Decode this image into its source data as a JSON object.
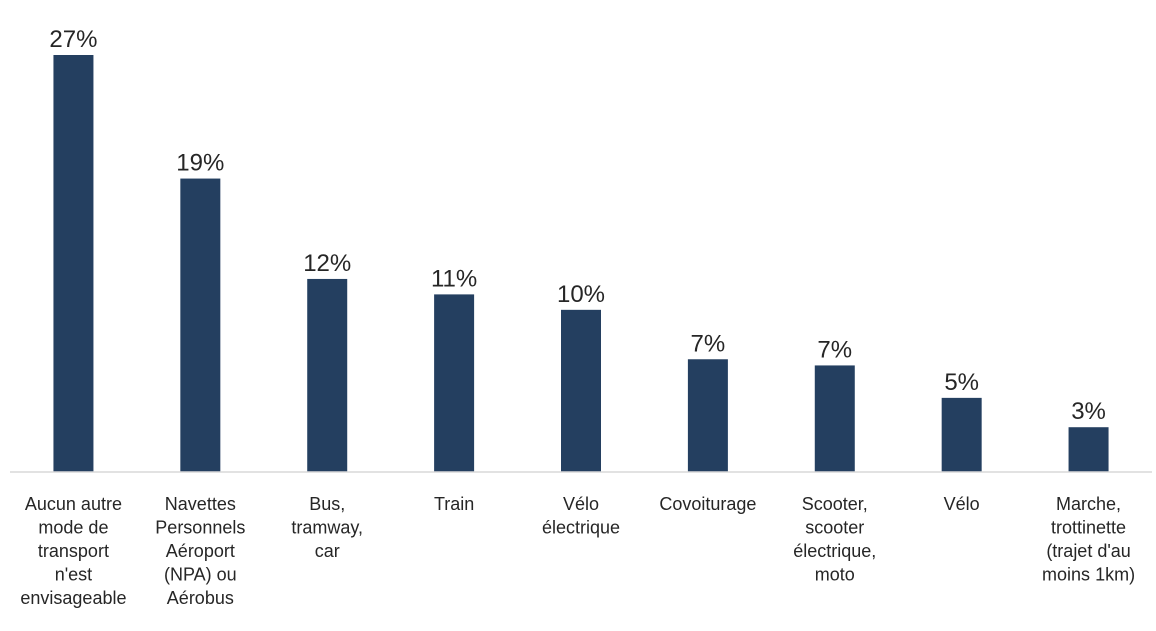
{
  "chart_data": {
    "type": "bar",
    "title": "",
    "xlabel": "",
    "ylabel": "",
    "ylim": [
      0,
      0.27
    ],
    "grid": false,
    "legend": "none",
    "bar_color": "#243F60",
    "axis_color": "#D9D9D9",
    "categories": [
      [
        "Aucun autre",
        "mode de",
        "transport",
        "n'est",
        "envisageable"
      ],
      [
        "Navettes",
        "Personnels",
        "Aéroport",
        "(NPA) ou",
        "Aérobus"
      ],
      [
        "Bus,",
        "tramway,",
        "car"
      ],
      [
        "Train"
      ],
      [
        "Vélo",
        "électrique"
      ],
      [
        "Covoiturage"
      ],
      [
        "Scooter,",
        "scooter",
        "électrique,",
        "moto"
      ],
      [
        "Vélo"
      ],
      [
        "Marche,",
        "trottinette",
        "(trajet d'au",
        "moins 1km)"
      ]
    ],
    "values": [
      0.27,
      0.19,
      0.125,
      0.115,
      0.105,
      0.073,
      0.069,
      0.048,
      0.029
    ],
    "data_labels": [
      "27%",
      "19%",
      "12%",
      "11%",
      "10%",
      "7%",
      "7%",
      "5%",
      "3%"
    ]
  }
}
